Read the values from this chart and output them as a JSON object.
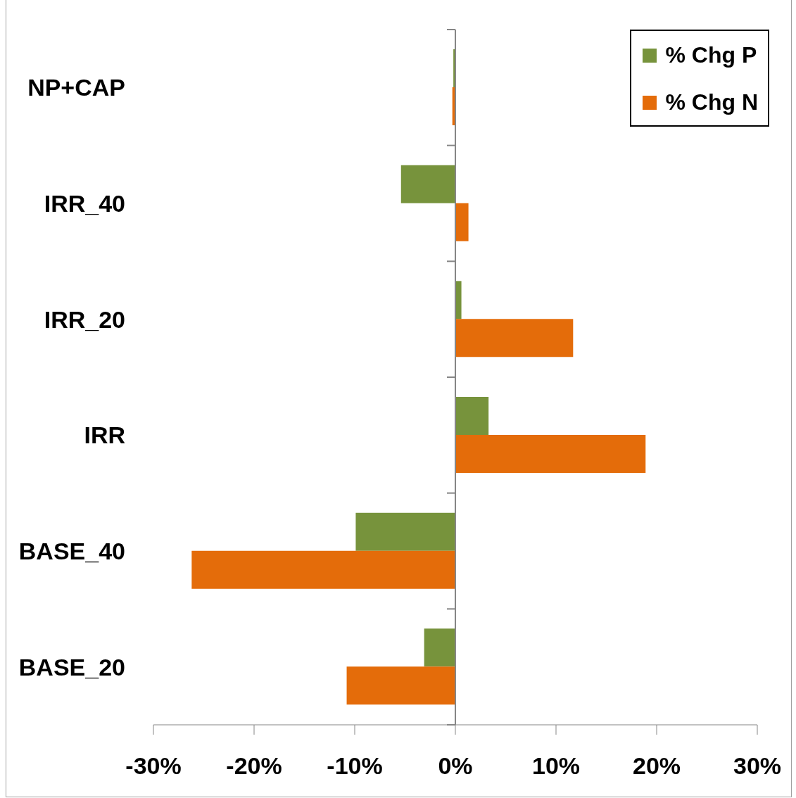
{
  "chart_data": {
    "type": "bar",
    "orientation": "horizontal",
    "categories": [
      "NP+CAP",
      "IRR_40",
      "IRR_20",
      "IRR",
      "BASE_40",
      "BASE_20"
    ],
    "series": [
      {
        "name": "% Chg P",
        "color": "#77933c",
        "values": [
          -0.2,
          -5.4,
          0.6,
          3.3,
          -9.9,
          -3.1
        ]
      },
      {
        "name": "% Chg N",
        "color": "#e46c0a",
        "values": [
          -0.3,
          1.3,
          11.7,
          18.9,
          -26.2,
          -10.8
        ]
      }
    ],
    "xlim": [
      -30,
      30
    ],
    "xticks": [
      {
        "value": -30,
        "label": "-30%"
      },
      {
        "value": -20,
        "label": "-20%"
      },
      {
        "value": -10,
        "label": "-10%"
      },
      {
        "value": 0,
        "label": "0%"
      },
      {
        "value": 10,
        "label": "10%"
      },
      {
        "value": 20,
        "label": "20%"
      },
      {
        "value": 30,
        "label": "30%"
      }
    ],
    "ref_lines": [
      {
        "axis": "x",
        "value": 0,
        "color": "#868686"
      }
    ],
    "grid": false,
    "legend": "top right"
  }
}
